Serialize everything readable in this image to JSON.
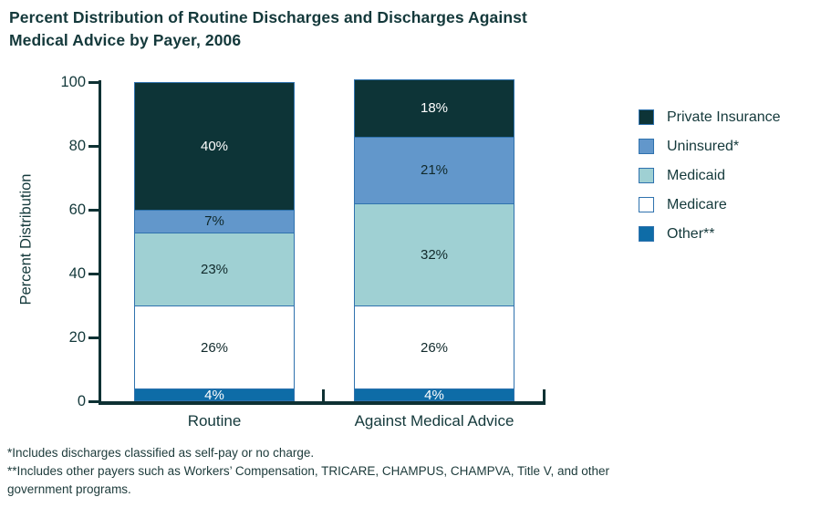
{
  "title": {
    "line1": "Percent Distribution of Routine Discharges and Discharges Against",
    "line2": "Medical Advice by Payer, 2006"
  },
  "chart_data": {
    "type": "bar",
    "stacked": true,
    "title": "Percent Distribution of Routine Discharges and Discharges Against Medical Advice by Payer, 2006",
    "categories": [
      "Routine",
      "Against Medical Advice"
    ],
    "series": [
      {
        "name": "Other**",
        "color": "#0e6ca7",
        "label_color": "#ffffff",
        "values": [
          4,
          4
        ]
      },
      {
        "name": "Medicare",
        "color": "#ffffff",
        "label_color": "#10292b",
        "values": [
          26,
          26
        ]
      },
      {
        "name": "Medicaid",
        "color": "#9fd0d3",
        "label_color": "#10292b",
        "values": [
          23,
          32
        ]
      },
      {
        "name": "Uninsured*",
        "color": "#6297cb",
        "label_color": "#10292b",
        "values": [
          7,
          21
        ]
      },
      {
        "name": "Private Insurance",
        "color": "#0d3437",
        "label_color": "#ffffff",
        "values": [
          40,
          18
        ]
      }
    ],
    "series_note": "series listed bottom-to-top of stack; legend shown top-to-bottom reversed",
    "xlabel": "",
    "ylabel": "Percent Distribution",
    "yticks": [
      0,
      20,
      40,
      60,
      80,
      100
    ],
    "ylim": [
      0,
      100
    ],
    "value_suffix": "%",
    "legend_position": "right",
    "grid": false,
    "colors": {
      "axis": "#0e3133",
      "text": "#14393b",
      "segment_border": "#2f72ae"
    }
  },
  "footnotes": [
    "*Includes discharges classified as self-pay or no charge.",
    "**Includes other payers such as Workers’ Compensation, TRICARE, CHAMPUS, CHAMPVA, Title V, and other government programs."
  ]
}
